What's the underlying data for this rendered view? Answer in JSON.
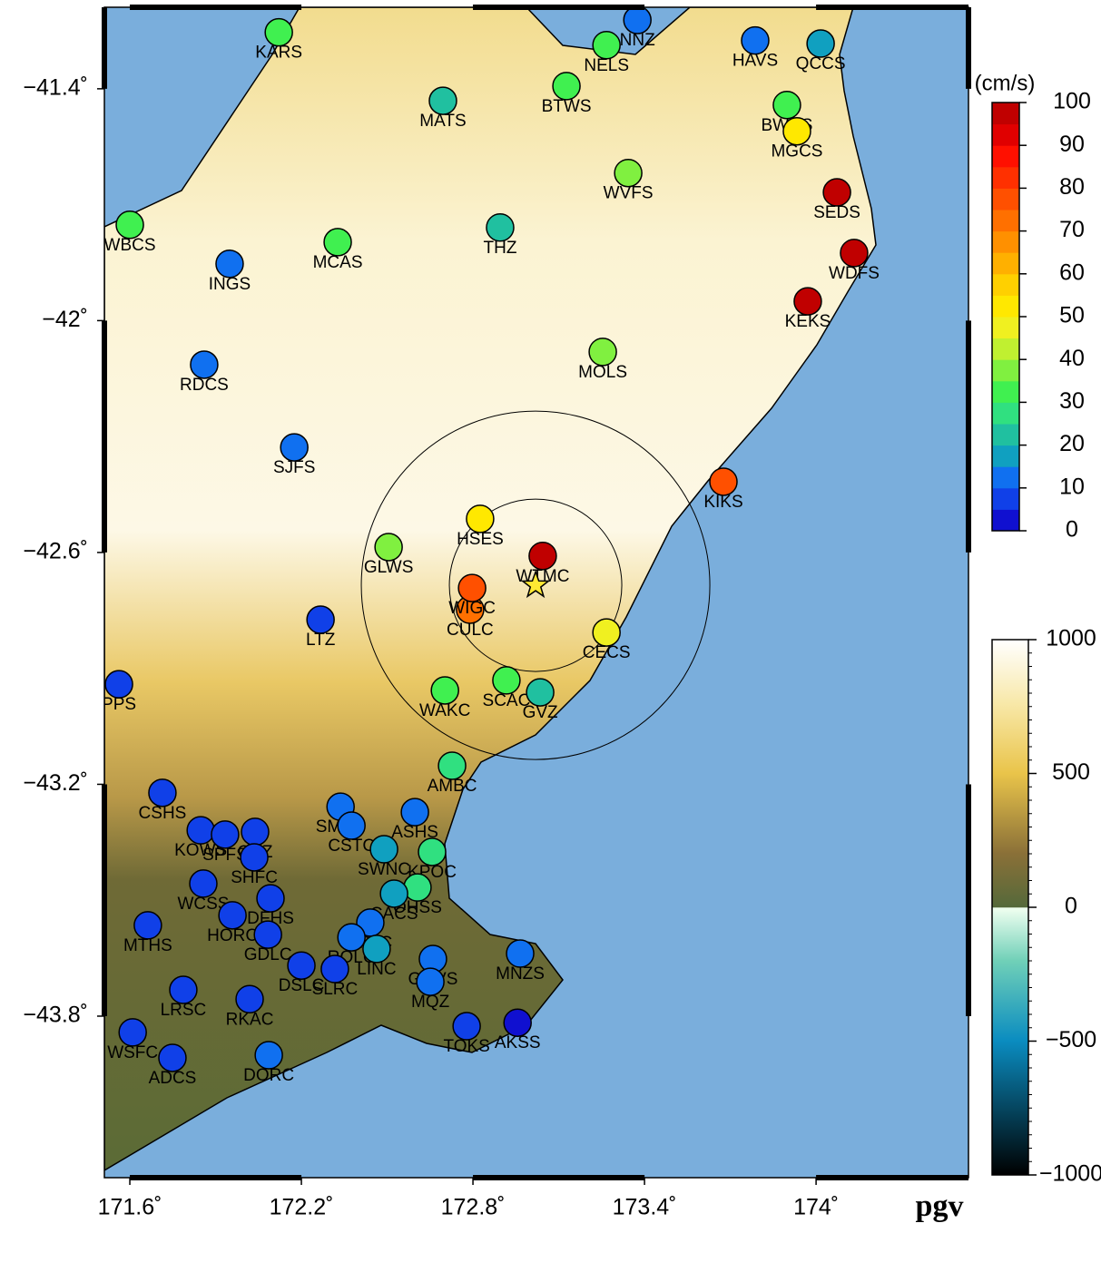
{
  "map": {
    "label": "pgv",
    "xlim": [
      171.511,
      174.533
    ],
    "ylim": [
      -44.218,
      -41.189
    ],
    "xticks": [
      {
        "value": 171.6,
        "label": "171.6˚"
      },
      {
        "value": 172.2,
        "label": "172.2˚"
      },
      {
        "value": 172.8,
        "label": "172.8˚"
      },
      {
        "value": 173.4,
        "label": "173.4˚"
      },
      {
        "value": 174,
        "label": "174˚"
      }
    ],
    "yticks": [
      {
        "value": -41.4,
        "label": "−41.4˚"
      },
      {
        "value": -42,
        "label": "−42˚"
      },
      {
        "value": -42.6,
        "label": "−42.6˚"
      },
      {
        "value": -43.2,
        "label": "−43.2˚"
      },
      {
        "value": -43.8,
        "label": "−43.8˚"
      }
    ],
    "epicenter": {
      "lon": 173.019,
      "lat": -42.685
    },
    "stations": [
      {
        "name": "KARS",
        "lon": 172.121,
        "lat": -41.254,
        "pgv": 30
      },
      {
        "name": "MATS",
        "lon": 172.695,
        "lat": -41.431,
        "pgv": 20
      },
      {
        "name": "BTWS",
        "lon": 173.127,
        "lat": -41.393,
        "pgv": 32
      },
      {
        "name": "NNZ",
        "lon": 173.375,
        "lat": -41.222,
        "pgv": 12
      },
      {
        "name": "NELS",
        "lon": 173.267,
        "lat": -41.287,
        "pgv": 30
      },
      {
        "name": "HAVS",
        "lon": 173.787,
        "lat": -41.275,
        "pgv": 12
      },
      {
        "name": "QCCS",
        "lon": 174.016,
        "lat": -41.283,
        "pgv": 18
      },
      {
        "name": "BWRS",
        "lon": 173.898,
        "lat": -41.442,
        "pgv": 33
      },
      {
        "name": "MGCS",
        "lon": 173.933,
        "lat": -41.51,
        "pgv": 50
      },
      {
        "name": "WVFS",
        "lon": 173.343,
        "lat": -41.618,
        "pgv": 35
      },
      {
        "name": "SEDS",
        "lon": 174.073,
        "lat": -41.668,
        "pgv": 95
      },
      {
        "name": "THZ",
        "lon": 172.895,
        "lat": -41.759,
        "pgv": 20
      },
      {
        "name": "WBCS",
        "lon": 171.6,
        "lat": -41.752,
        "pgv": 30
      },
      {
        "name": "MCAS",
        "lon": 172.327,
        "lat": -41.797,
        "pgv": 32
      },
      {
        "name": "INGS",
        "lon": 171.949,
        "lat": -41.853,
        "pgv": 10
      },
      {
        "name": "WDFS",
        "lon": 174.133,
        "lat": -41.825,
        "pgv": 95
      },
      {
        "name": "KEKS",
        "lon": 173.971,
        "lat": -41.95,
        "pgv": 95
      },
      {
        "name": "MOLS",
        "lon": 173.254,
        "lat": -42.081,
        "pgv": 35
      },
      {
        "name": "RDCS",
        "lon": 171.86,
        "lat": -42.114,
        "pgv": 10
      },
      {
        "name": "SJFS",
        "lon": 172.175,
        "lat": -42.328,
        "pgv": 10
      },
      {
        "name": "KIKS",
        "lon": 173.676,
        "lat": -42.417,
        "pgv": 75
      },
      {
        "name": "HSES",
        "lon": 172.825,
        "lat": -42.513,
        "pgv": 50
      },
      {
        "name": "GLWS",
        "lon": 172.505,
        "lat": -42.586,
        "pgv": 35
      },
      {
        "name": "WTMC",
        "lon": 173.044,
        "lat": -42.609,
        "pgv": 97
      },
      {
        "name": "CULC",
        "lon": 172.79,
        "lat": -42.748,
        "pgv": 70
      },
      {
        "name": "WIGC",
        "lon": 172.797,
        "lat": -42.692,
        "pgv": 75
      },
      {
        "name": "LTZ",
        "lon": 172.267,
        "lat": -42.774,
        "pgv": 8
      },
      {
        "name": "CECS",
        "lon": 173.267,
        "lat": -42.807,
        "pgv": 45
      },
      {
        "name": "PPS",
        "lon": 171.562,
        "lat": -42.941,
        "pgv": 8
      },
      {
        "name": "WAKC",
        "lon": 172.702,
        "lat": -42.957,
        "pgv": 30
      },
      {
        "name": "SCAC",
        "lon": 172.917,
        "lat": -42.931,
        "pgv": 30
      },
      {
        "name": "GVZ",
        "lon": 173.035,
        "lat": -42.962,
        "pgv": 20
      },
      {
        "name": "AMBC",
        "lon": 172.727,
        "lat": -43.152,
        "pgv": 28
      },
      {
        "name": "CSHS",
        "lon": 171.714,
        "lat": -43.222,
        "pgv": 8
      },
      {
        "name": "SMHS",
        "lon": 172.337,
        "lat": -43.258,
        "pgv": 12
      },
      {
        "name": "ASHS",
        "lon": 172.597,
        "lat": -43.272,
        "pgv": 12
      },
      {
        "name": "KOWS",
        "lon": 171.848,
        "lat": -43.319,
        "pgv": 8
      },
      {
        "name": "SPFS",
        "lon": 171.933,
        "lat": -43.33,
        "pgv": 8
      },
      {
        "name": "OXZ",
        "lon": 172.038,
        "lat": -43.323,
        "pgv": 8
      },
      {
        "name": "SHFC",
        "lon": 172.035,
        "lat": -43.389,
        "pgv": 8
      },
      {
        "name": "CSTC",
        "lon": 172.375,
        "lat": -43.307,
        "pgv": 10
      },
      {
        "name": "SWNC",
        "lon": 172.489,
        "lat": -43.368,
        "pgv": 18
      },
      {
        "name": "KPOC",
        "lon": 172.657,
        "lat": -43.375,
        "pgv": 28
      },
      {
        "name": "WCSS",
        "lon": 171.857,
        "lat": -43.457,
        "pgv": 8
      },
      {
        "name": "DFHS",
        "lon": 172.092,
        "lat": -43.495,
        "pgv": 8
      },
      {
        "name": "HORC",
        "lon": 171.959,
        "lat": -43.539,
        "pgv": 8
      },
      {
        "name": "OHSS",
        "lon": 172.606,
        "lat": -43.467,
        "pgv": 25
      },
      {
        "name": "CACS",
        "lon": 172.524,
        "lat": -43.483,
        "pgv": 18
      },
      {
        "name": "MTHS",
        "lon": 171.663,
        "lat": -43.565,
        "pgv": 8
      },
      {
        "name": "GDLC",
        "lon": 172.083,
        "lat": -43.589,
        "pgv": 8
      },
      {
        "name": "TPLC",
        "lon": 172.441,
        "lat": -43.558,
        "pgv": 12
      },
      {
        "name": "ROLC",
        "lon": 172.375,
        "lat": -43.596,
        "pgv": 10
      },
      {
        "name": "LINC",
        "lon": 172.463,
        "lat": -43.626,
        "pgv": 16
      },
      {
        "name": "DSLC",
        "lon": 172.2,
        "lat": -43.669,
        "pgv": 8
      },
      {
        "name": "SLRC",
        "lon": 172.317,
        "lat": -43.678,
        "pgv": 8
      },
      {
        "name": "MNZS",
        "lon": 172.965,
        "lat": -43.638,
        "pgv": 10
      },
      {
        "name": "GOVS",
        "lon": 172.66,
        "lat": -43.652,
        "pgv": 10
      },
      {
        "name": "MQZ",
        "lon": 172.651,
        "lat": -43.711,
        "pgv": 10
      },
      {
        "name": "LRSC",
        "lon": 171.787,
        "lat": -43.732,
        "pgv": 8
      },
      {
        "name": "RKAC",
        "lon": 172.019,
        "lat": -43.756,
        "pgv": 8
      },
      {
        "name": "TOKS",
        "lon": 172.778,
        "lat": -43.826,
        "pgv": 8
      },
      {
        "name": "AKSS",
        "lon": 172.956,
        "lat": -43.817,
        "pgv": 4
      },
      {
        "name": "WSFC",
        "lon": 171.61,
        "lat": -43.842,
        "pgv": 8
      },
      {
        "name": "ADCS",
        "lon": 171.749,
        "lat": -43.908,
        "pgv": 8
      },
      {
        "name": "DORC",
        "lon": 172.086,
        "lat": -43.901,
        "pgv": 10
      }
    ]
  },
  "pgv_colorbar": {
    "unit": "(cm/s)",
    "range": [
      0,
      100
    ],
    "ticks": [
      0,
      10,
      20,
      30,
      40,
      50,
      60,
      70,
      80,
      90,
      100
    ],
    "colors": [
      "#1010d0",
      "#1040e8",
      "#1070f0",
      "#10a0c0",
      "#20c0a0",
      "#30e080",
      "#40f050",
      "#80f040",
      "#c0f030",
      "#f0f020",
      "#ffe800",
      "#ffd000",
      "#ffb000",
      "#ff9000",
      "#ff7000",
      "#ff5000",
      "#ff3000",
      "#ff1000",
      "#e00000",
      "#c00000"
    ]
  },
  "topo_colorbar": {
    "range": [
      -1000,
      1000
    ],
    "ticks": [
      {
        "value": -1000,
        "label": "−1000"
      },
      {
        "value": -500,
        "label": "−500"
      },
      0,
      500,
      1000
    ]
  }
}
